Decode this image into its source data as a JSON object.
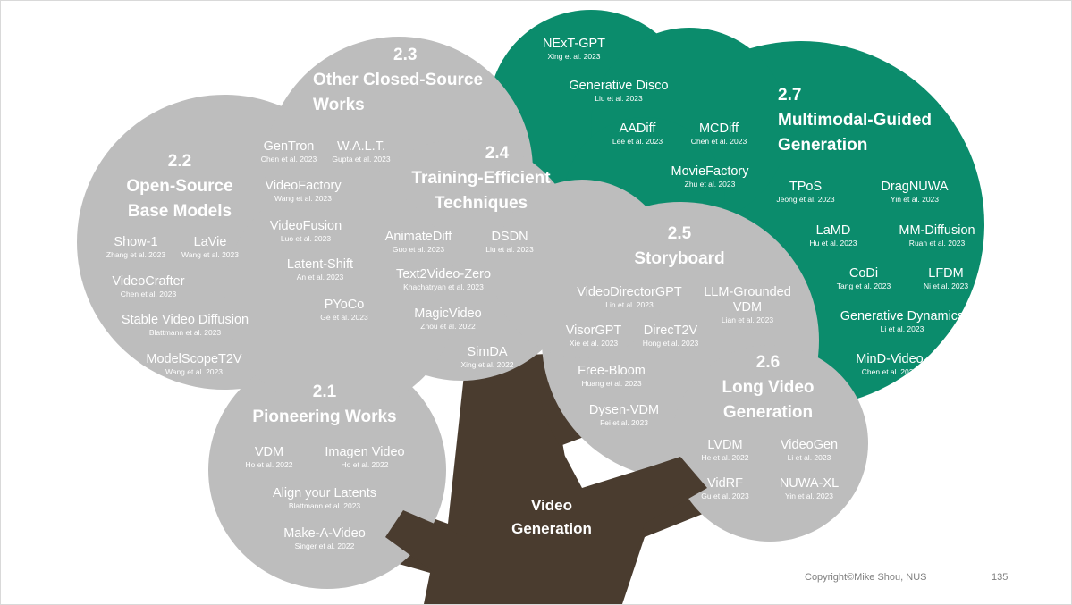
{
  "colors": {
    "gray": "#bdbdbd",
    "green": "#0b8c6c",
    "trunk": "#4a3c2f"
  },
  "trunk_label": [
    "Video",
    "Generation"
  ],
  "sections": {
    "s21": {
      "number": "2.1",
      "title": [
        "Pioneering Works"
      ],
      "items": [
        {
          "name": "VDM",
          "cite": "Ho et al. 2022"
        },
        {
          "name": "Imagen Video",
          "cite": "Ho et al. 2022"
        },
        {
          "name": "Align your Latents",
          "cite": "Blattmann et al. 2023"
        },
        {
          "name": "Make-A-Video",
          "cite": "Singer et al. 2022"
        }
      ]
    },
    "s22": {
      "number": "2.2",
      "title": [
        "Open-Source",
        "Base Models"
      ],
      "items": [
        {
          "name": "Show-1",
          "cite": "Zhang et al. 2023"
        },
        {
          "name": "LaVie",
          "cite": "Wang et al. 2023"
        },
        {
          "name": "VideoCrafter",
          "cite": "Chen et al. 2023"
        },
        {
          "name": "Stable Video Diffusion",
          "cite": "Blattmann et al. 2023"
        },
        {
          "name": "ModelScopeT2V",
          "cite": "Wang et al. 2023"
        }
      ]
    },
    "s23": {
      "number": "2.3",
      "title": [
        "Other Closed-Source",
        "Works"
      ],
      "items": [
        {
          "name": "GenTron",
          "cite": "Chen et al. 2023"
        },
        {
          "name": "W.A.L.T.",
          "cite": "Gupta et al. 2023"
        },
        {
          "name": "VideoFactory",
          "cite": "Wang et al. 2023"
        },
        {
          "name": "VideoFusion",
          "cite": "Luo et al. 2023"
        },
        {
          "name": "Latent-Shift",
          "cite": "An et al. 2023"
        },
        {
          "name": "PYoCo",
          "cite": "Ge et al. 2023"
        }
      ]
    },
    "s24": {
      "number": "2.4",
      "title": [
        "Training-Efficient",
        "Techniques"
      ],
      "items": [
        {
          "name": "AnimateDiff",
          "cite": "Guo et al. 2023"
        },
        {
          "name": "DSDN",
          "cite": "Liu et al. 2023"
        },
        {
          "name": "Text2Video-Zero",
          "cite": "Khachatryan et al. 2023"
        },
        {
          "name": "MagicVideo",
          "cite": "Zhou et al. 2022"
        },
        {
          "name": "SimDA",
          "cite": "Xing et al. 2022"
        }
      ]
    },
    "s25": {
      "number": "2.5",
      "title": [
        "Storyboard"
      ],
      "items": [
        {
          "name": "VideoDirectorGPT",
          "cite": "Lin et al. 2023"
        },
        {
          "name": "LLM-Grounded",
          "name2": "VDM",
          "cite": "Lian et al. 2023"
        },
        {
          "name": "VisorGPT",
          "cite": "Xie et al. 2023"
        },
        {
          "name": "DirecT2V",
          "cite": "Hong et al. 2023"
        },
        {
          "name": "Free-Bloom",
          "cite": "Huang et al. 2023"
        },
        {
          "name": "Dysen-VDM",
          "cite": "Fei et al. 2023"
        }
      ]
    },
    "s26": {
      "number": "2.6",
      "title": [
        "Long Video",
        "Generation"
      ],
      "items": [
        {
          "name": "LVDM",
          "cite": "He et al. 2022"
        },
        {
          "name": "VideoGen",
          "cite": "Li et al. 2023"
        },
        {
          "name": "VidRF",
          "cite": "Gu et al. 2023"
        },
        {
          "name": "NUWA-XL",
          "cite": "Yin et al. 2023"
        }
      ]
    },
    "s27": {
      "number": "2.7",
      "title": [
        "Multimodal-Guided",
        "Generation"
      ],
      "items": [
        {
          "name": "NExT-GPT",
          "cite": "Xing et al. 2023"
        },
        {
          "name": "Generative Disco",
          "cite": "Liu et al. 2023"
        },
        {
          "name": "AADiff",
          "cite": "Lee et al. 2023"
        },
        {
          "name": "MCDiff",
          "cite": "Chen et al. 2023"
        },
        {
          "name": "MovieFactory",
          "cite": "Zhu et al. 2023"
        },
        {
          "name": "TPoS",
          "cite": "Jeong et al. 2023"
        },
        {
          "name": "DragNUWA",
          "cite": "Yin et al. 2023"
        },
        {
          "name": "LaMD",
          "cite": "Hu et al. 2023"
        },
        {
          "name": "MM-Diffusion",
          "cite": "Ruan et al. 2023"
        },
        {
          "name": "CoDi",
          "cite": "Tang et al. 2023"
        },
        {
          "name": "LFDM",
          "cite": "Ni et al. 2023"
        },
        {
          "name": "Generative Dynamics",
          "cite": "Li et al. 2023"
        },
        {
          "name": "MinD-Video",
          "cite": "Chen et al. 2023"
        }
      ]
    }
  },
  "footer": {
    "copyright": "Copyright©Mike Shou, NUS",
    "page": "135"
  }
}
